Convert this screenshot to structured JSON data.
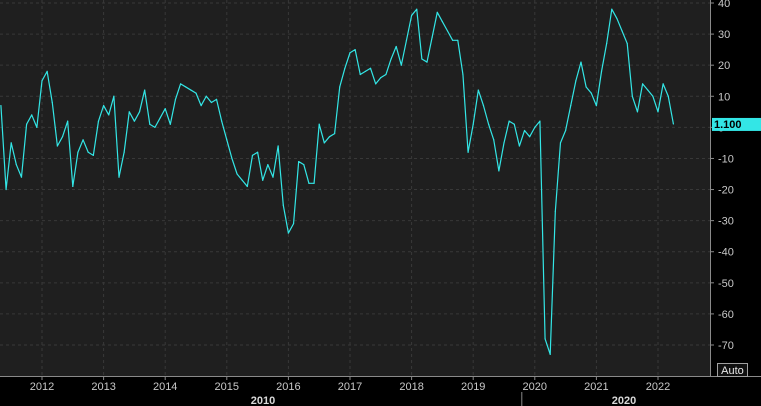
{
  "chart_data": {
    "type": "line",
    "title": "",
    "xlabel": "",
    "ylabel": "",
    "ylim": [
      -76,
      40
    ],
    "y_ticks": [
      40,
      30,
      20,
      10,
      0,
      -10,
      -20,
      -30,
      -40,
      -50,
      -60,
      -70
    ],
    "x_tick_labels": [
      "2012",
      "2013",
      "2014",
      "2015",
      "2016",
      "2017",
      "2018",
      "2019",
      "2020",
      "2021",
      "2022"
    ],
    "decade_labels": [
      "2010",
      "2020"
    ],
    "last_value_label": "1.100",
    "grid": true,
    "colors": {
      "background": "#000000",
      "plot_background": "#1f1f1f",
      "grid": "#383838",
      "series": "#33e6e6",
      "last_value_tag": "#33e6e6"
    },
    "series": [
      {
        "x": [
          "2011-05",
          "2011-06",
          "2011-07",
          "2011-08",
          "2011-09",
          "2011-10",
          "2011-11",
          "2011-12",
          "2012-01",
          "2012-02",
          "2012-03",
          "2012-04",
          "2012-05",
          "2012-06",
          "2012-07",
          "2012-08",
          "2012-09",
          "2012-10",
          "2012-11",
          "2012-12",
          "2013-01",
          "2013-02",
          "2013-03",
          "2013-04",
          "2013-05",
          "2013-06",
          "2013-07",
          "2013-08",
          "2013-09",
          "2013-10",
          "2013-11",
          "2013-12",
          "2014-01",
          "2014-02",
          "2014-03",
          "2014-04",
          "2014-05",
          "2014-06",
          "2014-07",
          "2014-08",
          "2014-09",
          "2014-10",
          "2014-11",
          "2014-12",
          "2015-01",
          "2015-02",
          "2015-03",
          "2015-04",
          "2015-05",
          "2015-06",
          "2015-07",
          "2015-08",
          "2015-09",
          "2015-10",
          "2015-11",
          "2015-12",
          "2016-01",
          "2016-02",
          "2016-03",
          "2016-04",
          "2016-05",
          "2016-06",
          "2016-07",
          "2016-08",
          "2016-09",
          "2016-10",
          "2016-11",
          "2016-12",
          "2017-01",
          "2017-02",
          "2017-03",
          "2017-04",
          "2017-05",
          "2017-06",
          "2017-07",
          "2017-08",
          "2017-09",
          "2017-10",
          "2017-11",
          "2017-12",
          "2018-01",
          "2018-02",
          "2018-03",
          "2018-04",
          "2018-05",
          "2018-06",
          "2018-07",
          "2018-08",
          "2018-09",
          "2018-10",
          "2018-11",
          "2018-12",
          "2019-01",
          "2019-02",
          "2019-03",
          "2019-04",
          "2019-05",
          "2019-06",
          "2019-07",
          "2019-08",
          "2019-09",
          "2019-10",
          "2019-11",
          "2019-12",
          "2020-01",
          "2020-02",
          "2020-03",
          "2020-04",
          "2020-05",
          "2020-06",
          "2020-07",
          "2020-08",
          "2020-09",
          "2020-10",
          "2020-11",
          "2020-12",
          "2021-01",
          "2021-02",
          "2021-03",
          "2021-04",
          "2021-05",
          "2021-06",
          "2021-07",
          "2021-08",
          "2021-09",
          "2021-10",
          "2021-11",
          "2021-12",
          "2022-01",
          "2022-02",
          "2022-03",
          "2022-04"
        ],
        "values": [
          7,
          -20,
          -5,
          -12,
          -16,
          1,
          4,
          0,
          15,
          18,
          8,
          -6,
          -3,
          2,
          -19,
          -8,
          -4,
          -8,
          -9,
          2,
          7,
          4,
          10,
          -16,
          -8,
          5,
          2,
          5,
          12,
          1,
          0,
          3,
          6,
          1,
          9,
          14,
          13,
          12,
          11,
          7,
          10,
          8,
          9,
          2,
          -4,
          -10,
          -15,
          -17,
          -19,
          -9,
          -8,
          -17,
          -12,
          -16,
          -6,
          -25,
          -34,
          -31,
          -11,
          -12,
          -18,
          -18,
          1,
          -5,
          -3,
          -2,
          13,
          19,
          24,
          25,
          17,
          18,
          19,
          14,
          16,
          17,
          22,
          26,
          20,
          28,
          36,
          38,
          22,
          21,
          29,
          37,
          34,
          31,
          28,
          28,
          17,
          -8,
          1,
          12,
          7,
          1,
          -4,
          -14,
          -5,
          2,
          1,
          -6,
          -1,
          -3,
          0,
          2,
          -68,
          -73,
          -27,
          -5,
          -1,
          7,
          15,
          21,
          13,
          11,
          7,
          18,
          27,
          38,
          35,
          31,
          27,
          10,
          5,
          14,
          12,
          10,
          5,
          14,
          10,
          1.1
        ]
      }
    ]
  },
  "controls": {
    "auto_label": "Auto"
  }
}
